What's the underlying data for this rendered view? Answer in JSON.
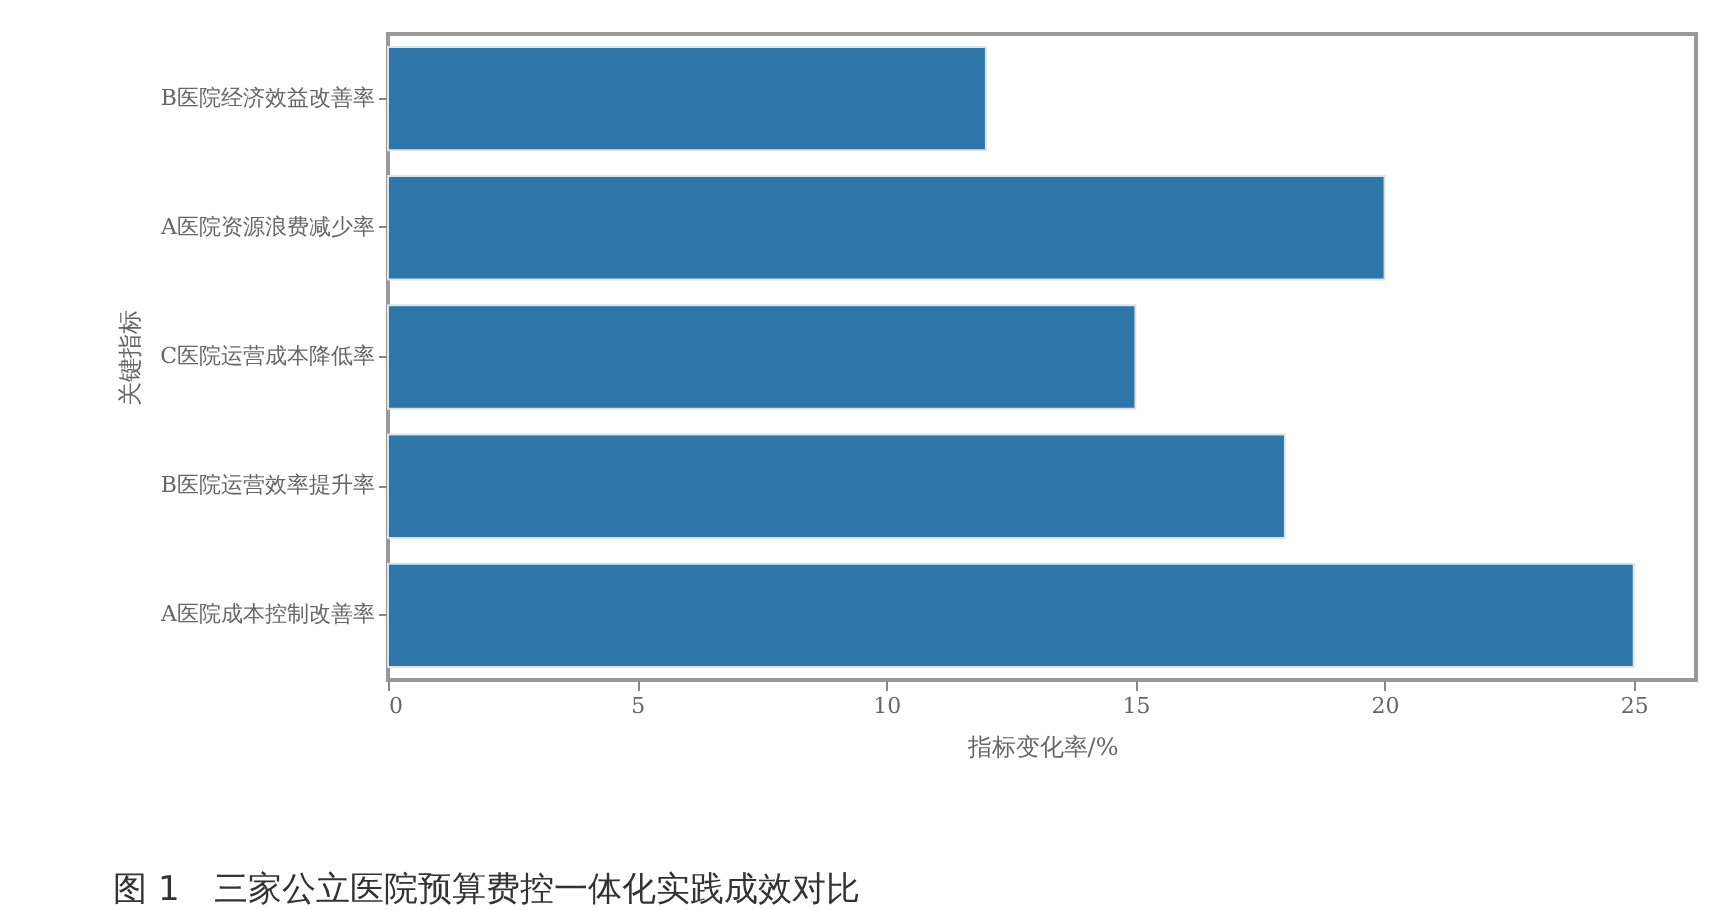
{
  "chart_data": {
    "type": "bar",
    "orientation": "horizontal",
    "title": "图 1　三家公立医院预算费控一体化实践成效对比",
    "xlabel": "指标变化率/%",
    "ylabel": "关键指标",
    "categories": [
      "B医院经济效益改善率",
      "A医院资源浪费减少率",
      "C医院运营成本降低率",
      "B医院运营效率提升率",
      "A医院成本控制改善率"
    ],
    "values": [
      12,
      20,
      15,
      18,
      25
    ],
    "color": "#2e75a8",
    "xlim": [
      0,
      26.25
    ],
    "xticks": [
      0,
      5,
      10,
      15,
      20,
      25
    ],
    "grid": false
  }
}
